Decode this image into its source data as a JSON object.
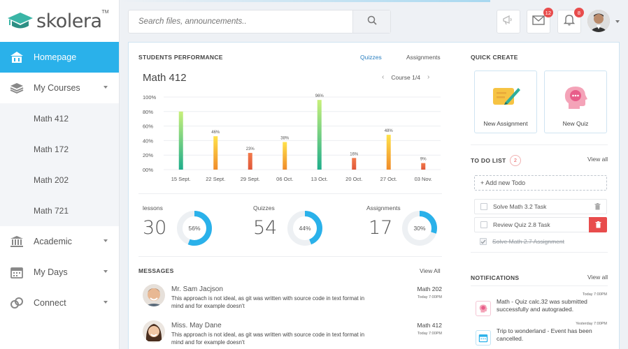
{
  "brand": {
    "name": "skolera",
    "tm": "TM"
  },
  "sidebar": {
    "items": [
      {
        "label": "Homepage",
        "icon": "home-icon",
        "active": true
      },
      {
        "label": "My Courses",
        "icon": "books-icon",
        "expanded": true,
        "children": [
          "Math 412",
          "Math 172",
          "Math 202",
          "Math 721"
        ]
      },
      {
        "label": "Academic",
        "icon": "institution-icon"
      },
      {
        "label": "My Days",
        "icon": "calendar-icon"
      },
      {
        "label": "Connect",
        "icon": "connect-icon"
      }
    ]
  },
  "topbar": {
    "search_placeholder": "Search files, announcements..",
    "mail_count": "12",
    "bell_count": "8"
  },
  "performance": {
    "title": "STUDENTS PERFORMANCE",
    "tabs": [
      "Quizzes",
      "Assignments"
    ],
    "active_tab": "Quizzes",
    "course": "Math 412",
    "course_pager": "Course 1/4"
  },
  "chart_data": {
    "type": "bar",
    "categories": [
      "15 Sept.",
      "22 Sept.",
      "29 Sept.",
      "06 Oct.",
      "13 Oct.",
      "20 Oct.",
      "27 Oct.",
      "03 Nov."
    ],
    "values": [
      80,
      46,
      23,
      38,
      96,
      16,
      48,
      9
    ],
    "labels": [
      "",
      "46%",
      "23%",
      "38%",
      "96%",
      "16%",
      "48%",
      "9%"
    ],
    "y_ticks": [
      "100%",
      "80%",
      "60%",
      "40%",
      "20%",
      "00%"
    ],
    "ylim": [
      0,
      100
    ],
    "grid": true,
    "colors": {
      "high": "#2ecc71",
      "mid": "#f4c20d",
      "low": "#e8603c",
      "top_high": "#c8f07a",
      "bottom_high": "#1fae8c"
    }
  },
  "stats": [
    {
      "label": "lessons",
      "value": "30",
      "percent": 56,
      "pct_label": "56%"
    },
    {
      "label": "Quizzes",
      "value": "54",
      "percent": 44,
      "pct_label": "44%"
    },
    {
      "label": "Assignments",
      "value": "17",
      "percent": 30,
      "pct_label": "30%"
    }
  ],
  "messages": {
    "title": "MESSAGES",
    "view_all": "View All",
    "items": [
      {
        "name": "Mr. Sam Jacjson",
        "body": "This approach is not ideal, as git was written with source code in text format in mind and for example doesn't",
        "course": "Math 202",
        "time": "Today 7:00PM"
      },
      {
        "name": "Miss. May Dane",
        "body": "This approach is not ideal, as git was written with source code in text format in mind and for example doesn't",
        "course": "Math 412",
        "time": "Today 7:00PM"
      }
    ]
  },
  "quick_create": {
    "title": "QUICK CREATE",
    "items": [
      {
        "label": "New Assignment",
        "icon": "assignment-pen-icon"
      },
      {
        "label": "New Quiz",
        "icon": "quiz-head-icon"
      }
    ]
  },
  "todo": {
    "title": "TO DO LIST",
    "count": "2",
    "view_all": "View all",
    "add_label": "+ Add new Todo",
    "items": [
      {
        "text": "Solve Math 3.2 Task",
        "done": false
      },
      {
        "text": "Review Quiz 2.8 Task",
        "done": false
      },
      {
        "text": "Solve Math 2.7 Assignment",
        "done": true
      }
    ]
  },
  "notifications": {
    "title": "NOTIFICATIONS",
    "view_all": "View all",
    "items": [
      {
        "time": "Today 7:00PM",
        "text": "Math - Quiz calc.32 was submitted successfully and autograded.",
        "icon": "quiz-head-icon",
        "color": "#e85d8a"
      },
      {
        "time": "Yesterday 7:00PM",
        "text": "Trip to wonderland - Event has been cancelled.",
        "icon": "calendar-icon",
        "color": "#2ab1ea"
      }
    ]
  }
}
